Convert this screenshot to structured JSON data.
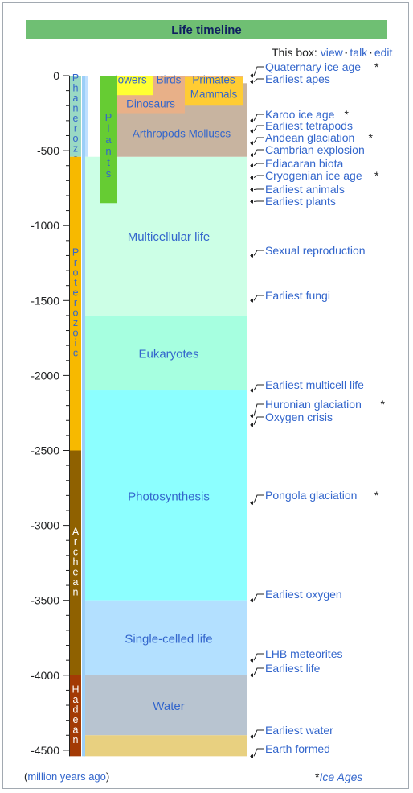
{
  "box": {
    "title": "Life timeline",
    "nav_prefix": "This box:",
    "nav_view": "view",
    "nav_talk": "talk",
    "nav_edit": "edit",
    "footer_unit": "million years ago",
    "footer_open_paren": "(",
    "footer_close_paren": ")",
    "footer_ice_marker": "*",
    "footer_ice_label": "Ice Ages"
  },
  "colors": {
    "text_link": "#3366cc",
    "axis": "#202122",
    "plants": "#66cc33",
    "flowers": "#ffff33",
    "dinosaurs": "#e8b088",
    "primates": "#e8a8c0",
    "mammals": "#ffcc33",
    "arthropods": "#c8b4a0",
    "multicellular": "#ccffe6",
    "eukaryotes": "#a6ffe0",
    "photosynthesis": "#8cffff",
    "single_celled": "#b3e0ff",
    "water": "#b8c4d0",
    "earth": "#e8d080",
    "phanerozoic": "#9ad9c4",
    "proterozoic": "#f7b900",
    "archean": "#8f6100",
    "hadean": "#a33a05"
  },
  "chart_data": {
    "type": "timeline",
    "ylim": [
      0,
      -4540
    ],
    "yticks": [
      0,
      -500,
      -1000,
      -1500,
      -2000,
      -2500,
      -3000,
      -3500,
      -4000,
      -4500
    ],
    "ytick_labels": [
      "0",
      "-500",
      "-1000",
      "-1500",
      "-2000",
      "-2500",
      "-3000",
      "-3500",
      "-4000",
      "-4500"
    ],
    "eons": [
      {
        "name": "Phanerozoic",
        "start": -541,
        "end": 0,
        "color": "#9ad9c4",
        "text_color": "#3366cc"
      },
      {
        "name": "Proterozoic",
        "start": -2500,
        "end": -541,
        "color": "#f7b900",
        "text_color": "#3366cc"
      },
      {
        "name": "Archean",
        "start": -4000,
        "end": -2500,
        "color": "#8f6100",
        "text_color": "#ffffff"
      },
      {
        "name": "Hadean",
        "start": -4540,
        "end": -4000,
        "color": "#a33a05",
        "text_color": "#ffffff"
      }
    ],
    "life_bands": [
      {
        "name": "Multicellular life",
        "start": -1600,
        "end": -541,
        "label_at": -1070,
        "color": "#ccffe6"
      },
      {
        "name": "Eukaryotes",
        "start": -2100,
        "end": -1600,
        "label_at": -1850,
        "color": "#a6ffe0"
      },
      {
        "name": "Photosynthesis",
        "start": -3500,
        "end": -2100,
        "label_at": -2800,
        "color": "#8cffff"
      },
      {
        "name": "Single-celled life",
        "start": -4000,
        "end": -3500,
        "label_at": -3750,
        "color": "#b3e0ff"
      },
      {
        "name": "Water",
        "start": -4400,
        "end": -4000,
        "label_at": -4200,
        "color": "#b8c4d0"
      }
    ],
    "recent_groups": [
      {
        "name": "Arthropods Molluscs",
        "start": -541,
        "end": -50,
        "label_at": -385,
        "color": "#c8b4a0"
      },
      {
        "name": "Dinosaurs",
        "start": -250,
        "end": -66,
        "label_at": -185,
        "color": "#e8b088"
      },
      {
        "name": "Flowers",
        "start": -130,
        "end": 0,
        "label_at": -25,
        "color": "#ffff33"
      },
      {
        "name": "Birds",
        "start": -150,
        "end": 0,
        "label_at": -25,
        "color": "#e8b088"
      },
      {
        "name": "Primates",
        "start": -65,
        "end": 0,
        "label_at": -25,
        "color": "#e8a8c0"
      },
      {
        "name": "Mammals",
        "start": -200,
        "end": -8,
        "label_at": -120,
        "color": "#ffcc33"
      }
    ],
    "plants": {
      "name": "Plants",
      "start": -850,
      "end": 0,
      "color": "#66cc33"
    },
    "earth_formed_band": {
      "start": -4540,
      "end": -4400,
      "color": "#e8d080"
    },
    "events": [
      {
        "label": "Quaternary ice age",
        "ice": true,
        "at": 0
      },
      {
        "label": "Earliest apes",
        "ice": false,
        "at": -40
      },
      {
        "label": "Karoo ice age",
        "ice": true,
        "at": -300
      },
      {
        "label": "Earliest tetrapods",
        "ice": false,
        "at": -370
      },
      {
        "label": "Andean glaciation",
        "ice": true,
        "at": -450
      },
      {
        "label": "Cambrian explosion",
        "ice": false,
        "at": -530
      },
      {
        "label": "Ediacaran biota",
        "ice": false,
        "at": -600
      },
      {
        "label": "Cryogenian ice age",
        "ice": true,
        "at": -680
      },
      {
        "label": "Earliest animals",
        "ice": false,
        "at": -760
      },
      {
        "label": "Earliest plants",
        "ice": false,
        "at": -840
      },
      {
        "label": "Sexual reproduction",
        "ice": false,
        "at": -1200
      },
      {
        "label": "Earliest fungi",
        "ice": false,
        "at": -1500
      },
      {
        "label": "Earliest multicell life",
        "ice": false,
        "at": -2100
      },
      {
        "label": "Huronian glaciation",
        "ice": true,
        "at": -2270
      },
      {
        "label": "Oxygen crisis",
        "ice": false,
        "at": -2330
      },
      {
        "label": "Pongola glaciation",
        "ice": true,
        "at": -2850
      },
      {
        "label": "Earliest oxygen",
        "ice": false,
        "at": -3500
      },
      {
        "label": "LHB meteorites",
        "ice": false,
        "at": -3900
      },
      {
        "label": "Earliest life",
        "ice": false,
        "at": -4000
      },
      {
        "label": "Earliest water",
        "ice": false,
        "at": -4410
      },
      {
        "label": "Earth formed",
        "ice": false,
        "at": -4540
      }
    ]
  }
}
